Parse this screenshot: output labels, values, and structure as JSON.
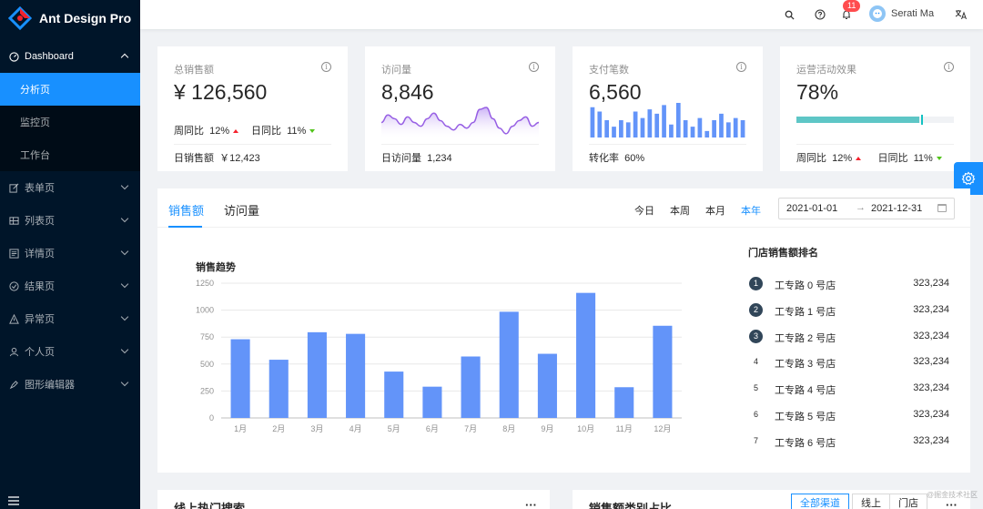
{
  "app": {
    "title": "Ant Design Pro"
  },
  "sidebar": {
    "dashboard": {
      "label": "Dashboard",
      "icon": "dashboard-icon"
    },
    "submenu": [
      {
        "label": "分析页",
        "active": true
      },
      {
        "label": "监控页"
      },
      {
        "label": "工作台"
      }
    ],
    "items": [
      {
        "label": "表单页",
        "icon": "form-icon"
      },
      {
        "label": "列表页",
        "icon": "table-icon"
      },
      {
        "label": "详情页",
        "icon": "profile-icon"
      },
      {
        "label": "结果页",
        "icon": "check-circle-icon"
      },
      {
        "label": "异常页",
        "icon": "warning-icon"
      },
      {
        "label": "个人页",
        "icon": "user-icon"
      },
      {
        "label": "图形编辑器",
        "icon": "highlight-icon"
      }
    ]
  },
  "header": {
    "notification_count": "11",
    "username": "Serati Ma"
  },
  "stats": {
    "sales": {
      "title": "总销售额",
      "value": "¥ 126,560",
      "wow_label": "周同比",
      "wow_value": "12%",
      "dod_label": "日同比",
      "dod_value": "11%",
      "footer_label": "日销售额",
      "footer_value": "￥12,423"
    },
    "visits": {
      "title": "访问量",
      "value": "8,846",
      "footer_label": "日访问量",
      "footer_value": "1,234",
      "trend": [
        4,
        6,
        5,
        3.5,
        5.5,
        4,
        3,
        5,
        6.5,
        4.5,
        3,
        2,
        3.5,
        2.5,
        4,
        7.5,
        8,
        5,
        2.5,
        1,
        3,
        4.5,
        5.5,
        3,
        4
      ]
    },
    "payments": {
      "title": "支付笔数",
      "value": "6,560",
      "footer_label": "转化率",
      "footer_value": "60%",
      "bars": [
        7,
        6,
        4,
        2.5,
        4,
        3.5,
        6,
        4.5,
        6.5,
        5.5,
        7.5,
        3,
        8,
        4,
        2.5,
        4.5,
        1.5,
        4,
        5.5,
        3.5,
        4.5,
        4
      ]
    },
    "operations": {
      "title": "运营活动效果",
      "value": "78%",
      "progress": 78,
      "wow_label": "周同比",
      "wow_value": "12%",
      "dod_label": "日同比",
      "dod_value": "11%"
    }
  },
  "sales_card": {
    "tabs": [
      "销售额",
      "访问量"
    ],
    "range_links": [
      "今日",
      "本周",
      "本月",
      "本年"
    ],
    "active_range": "本年",
    "range_start": "2021-01-01",
    "range_end": "2021-12-31",
    "rank_title": "门店销售额排名",
    "ranking": [
      {
        "rank": "1",
        "name": "工专路 0 号店",
        "value": "323,234"
      },
      {
        "rank": "2",
        "name": "工专路 1 号店",
        "value": "323,234"
      },
      {
        "rank": "3",
        "name": "工专路 2 号店",
        "value": "323,234"
      },
      {
        "rank": "4",
        "name": "工专路 3 号店",
        "value": "323,234"
      },
      {
        "rank": "5",
        "name": "工专路 4 号店",
        "value": "323,234"
      },
      {
        "rank": "6",
        "name": "工专路 5 号店",
        "value": "323,234"
      },
      {
        "rank": "7",
        "name": "工专路 6 号店",
        "value": "323,234"
      }
    ]
  },
  "chart_data": {
    "type": "bar",
    "title": "销售趋势",
    "categories": [
      "1月",
      "2月",
      "3月",
      "4月",
      "5月",
      "6月",
      "7月",
      "8月",
      "9月",
      "10月",
      "11月",
      "12月"
    ],
    "values": [
      730,
      540,
      795,
      780,
      430,
      290,
      570,
      985,
      595,
      1160,
      285,
      855
    ],
    "ylim": [
      0,
      1250
    ],
    "yticks": [
      0,
      250,
      500,
      750,
      1000,
      1250
    ],
    "color": "#6394f9",
    "grid": true
  },
  "bottom": {
    "left_title": "线上热门搜索",
    "right_title": "销售额类别占比",
    "segments": [
      "全部渠道",
      "线上",
      "门店"
    ],
    "more": "···"
  },
  "watermark": "@掘金技术社区",
  "colors": {
    "primary": "#1890ff",
    "sider": "#001529",
    "progress": "#13c2c2"
  }
}
